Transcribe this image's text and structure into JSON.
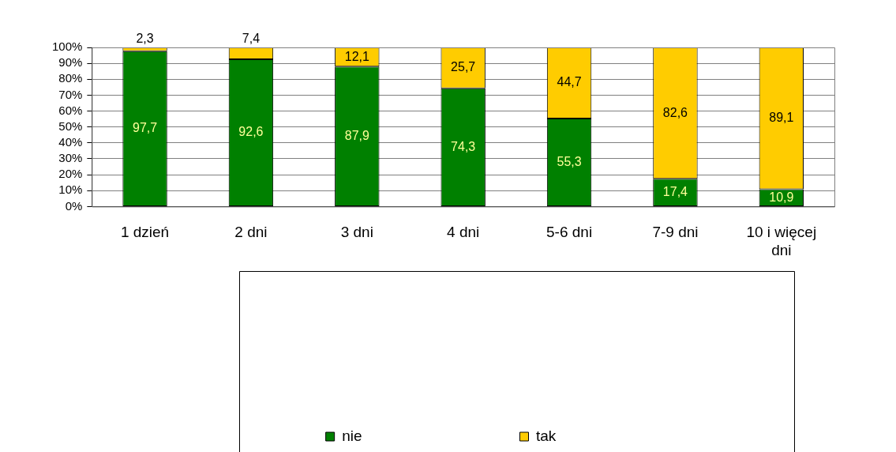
{
  "chart_data": {
    "type": "bar",
    "stacked": true,
    "categories": [
      "1 dzień",
      "2 dni",
      "3 dni",
      "4 dni",
      "5-6 dni",
      "7-9 dni",
      "10 i więcej dni"
    ],
    "series": [
      {
        "name": "nie",
        "color": "#008000",
        "values": [
          97.7,
          92.6,
          87.9,
          74.3,
          55.3,
          17.4,
          10.9
        ],
        "value_labels": [
          "97,7",
          "92,6",
          "87,9",
          "74,3",
          "55,3",
          "17,4",
          "10,9"
        ]
      },
      {
        "name": "tak",
        "color": "#ffcc00",
        "values": [
          2.3,
          7.4,
          12.1,
          25.7,
          44.7,
          82.6,
          89.1
        ],
        "value_labels": [
          "2,3",
          "7,4",
          "12,1",
          "25,7",
          "44,7",
          "82,6",
          "89,1"
        ]
      }
    ],
    "ylim": [
      0,
      100
    ],
    "yticks": [
      {
        "value": 0,
        "label": "0%"
      },
      {
        "value": 10,
        "label": "10%"
      },
      {
        "value": 20,
        "label": "20%"
      },
      {
        "value": 30,
        "label": "30%"
      },
      {
        "value": 40,
        "label": "40%"
      },
      {
        "value": 50,
        "label": "50%"
      },
      {
        "value": 60,
        "label": "60%"
      },
      {
        "value": 70,
        "label": "70%"
      },
      {
        "value": 80,
        "label": "80%"
      },
      {
        "value": 90,
        "label": "90%"
      },
      {
        "value": 100,
        "label": "100%"
      }
    ],
    "grid": "y",
    "legend": "bottom"
  }
}
